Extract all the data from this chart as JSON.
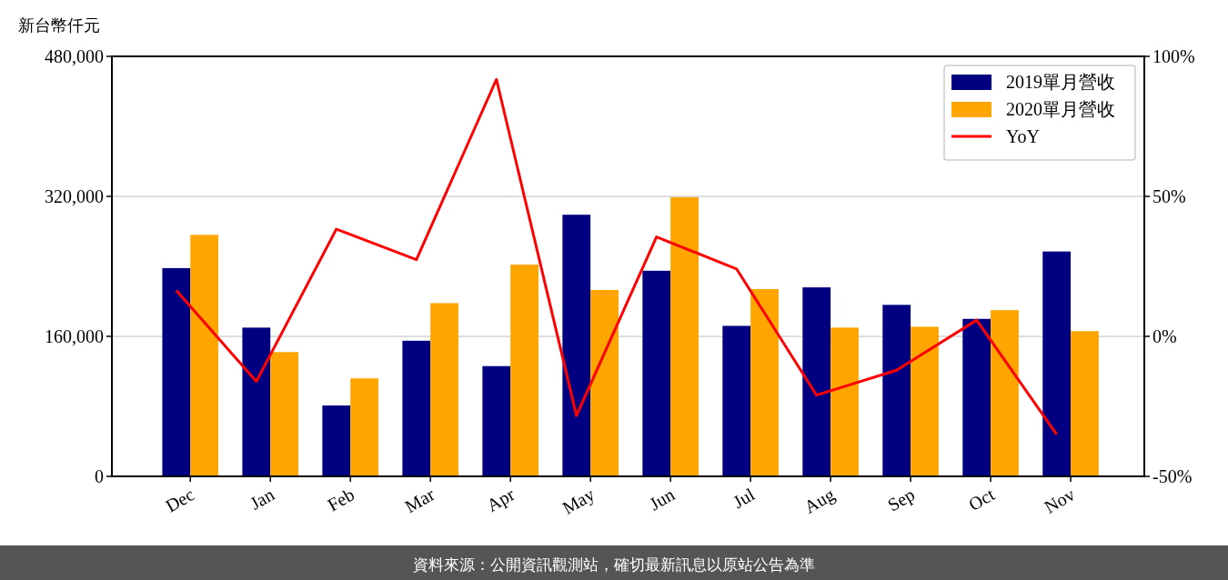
{
  "chart_data": {
    "type": "bar",
    "ylabel": "新台幣仟元",
    "categories": [
      "Dec",
      "Jan",
      "Feb",
      "Mar",
      "Apr",
      "May",
      "Jun",
      "Jul",
      "Aug",
      "Sep",
      "Oct",
      "Nov"
    ],
    "series": [
      {
        "name": "2019單月營收",
        "color": "#000080",
        "values": [
          238000,
          170000,
          81000,
          155000,
          126000,
          299000,
          235000,
          172000,
          216000,
          196000,
          180000,
          257000
        ]
      },
      {
        "name": "2020單月營收",
        "color": "#ffa500",
        "values": [
          276000,
          142000,
          112000,
          198000,
          242000,
          213000,
          319000,
          214000,
          170000,
          171000,
          190000,
          166000
        ]
      },
      {
        "name": "YoY",
        "type": "line",
        "axis": "y2",
        "color": "#ff0000",
        "values": [
          16.4,
          -16.1,
          38.3,
          27.4,
          91.8,
          -28.3,
          35.5,
          24.1,
          -21.0,
          -12.1,
          5.8,
          -35.0
        ]
      }
    ],
    "ylim": [
      0,
      480000
    ],
    "yticks": [
      0,
      {
        "value": 160000,
        "label": "160,000"
      },
      {
        "value": 320000,
        "label": "320,000"
      },
      {
        "value": 480000,
        "label": "480,000"
      }
    ],
    "y2lim": [
      -50,
      100
    ],
    "y2ticks": [
      {
        "value": -50,
        "label": "-50%"
      },
      {
        "value": 0,
        "label": "0%"
      },
      {
        "value": 50,
        "label": "50%"
      },
      {
        "value": 100,
        "label": "100%"
      }
    ],
    "grid": "y",
    "legend": "top right",
    "annotations": [
      "資料來源：公開資訊觀測站，確切最新訊息以原站公告為準"
    ]
  }
}
